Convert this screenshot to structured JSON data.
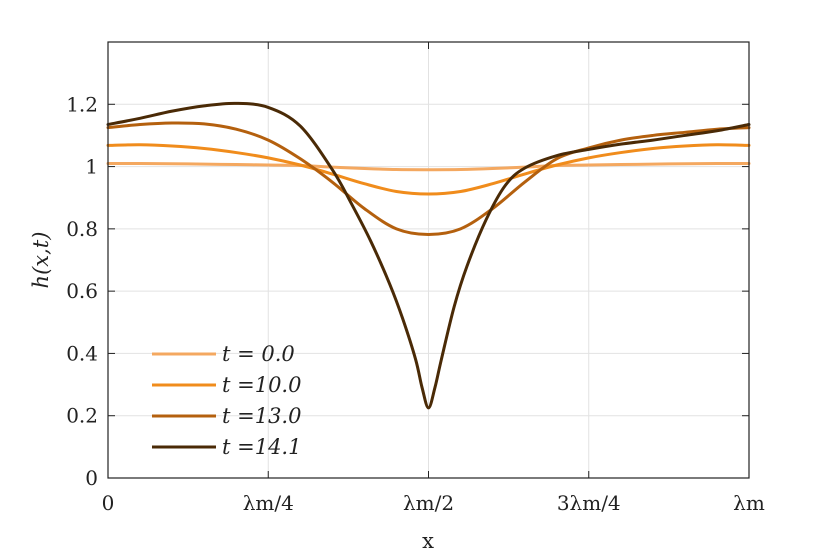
{
  "chart_data": {
    "type": "line",
    "title": "",
    "xlabel": "x",
    "ylabel": "h(x,t)",
    "xlim": [
      0,
      1
    ],
    "ylim": [
      0,
      1.4
    ],
    "grid": true,
    "legend_position": "bottom-left",
    "x_ticks": [
      {
        "value": 0,
        "label": "0"
      },
      {
        "value": 0.25,
        "label": "λm/4"
      },
      {
        "value": 0.5,
        "label": "λm/2"
      },
      {
        "value": 0.75,
        "label": "3λm/4"
      },
      {
        "value": 1,
        "label": "λm"
      }
    ],
    "y_ticks": [
      {
        "value": 0,
        "label": "0"
      },
      {
        "value": 0.2,
        "label": "0.2"
      },
      {
        "value": 0.4,
        "label": "0.4"
      },
      {
        "value": 0.6,
        "label": "0.6"
      },
      {
        "value": 0.8,
        "label": "0.8"
      },
      {
        "value": 1.0,
        "label": "1"
      },
      {
        "value": 1.2,
        "label": "1.2"
      }
    ],
    "series": [
      {
        "name": "t = 0.0",
        "color": "#f4a860",
        "x": [
          0,
          0.05,
          0.1,
          0.15,
          0.2,
          0.25,
          0.3,
          0.35,
          0.4,
          0.45,
          0.5,
          0.55,
          0.6,
          0.65,
          0.7,
          0.75,
          0.8,
          0.85,
          0.9,
          0.95,
          1.0
        ],
        "y": [
          1.01,
          1.0098,
          1.009,
          1.0079,
          1.0065,
          1.005,
          1.0033,
          0.9983,
          0.9936,
          0.9905,
          0.99,
          0.9905,
          0.9936,
          0.9983,
          1.0033,
          1.005,
          1.0065,
          1.0079,
          1.009,
          1.0098,
          1.01
        ]
      },
      {
        "name": "t =10.0",
        "color": "#f08c1c",
        "x": [
          0,
          0.05,
          0.1,
          0.15,
          0.2,
          0.25,
          0.3,
          0.35,
          0.4,
          0.45,
          0.5,
          0.55,
          0.6,
          0.65,
          0.7,
          0.75,
          0.8,
          0.85,
          0.9,
          0.95,
          1.0
        ],
        "y": [
          1.068,
          1.07,
          1.066,
          1.058,
          1.045,
          1.028,
          1.005,
          0.976,
          0.945,
          0.92,
          0.912,
          0.92,
          0.945,
          0.976,
          1.005,
          1.028,
          1.045,
          1.058,
          1.066,
          1.07,
          1.068
        ]
      },
      {
        "name": "t =13.0",
        "color": "#b4600e",
        "x": [
          0,
          0.05,
          0.1,
          0.15,
          0.2,
          0.25,
          0.3,
          0.35,
          0.4,
          0.45,
          0.5,
          0.55,
          0.6,
          0.65,
          0.7,
          0.75,
          0.8,
          0.85,
          0.9,
          0.95,
          1.0
        ],
        "y": [
          1.125,
          1.135,
          1.14,
          1.137,
          1.12,
          1.085,
          1.025,
          0.95,
          0.865,
          0.8,
          0.782,
          0.8,
          0.865,
          0.95,
          1.025,
          1.06,
          1.085,
          1.1,
          1.11,
          1.12,
          1.125
        ]
      },
      {
        "name": "t =14.1",
        "color": "#4a2a06",
        "x": [
          0,
          0.05,
          0.1,
          0.15,
          0.2,
          0.25,
          0.3,
          0.35,
          0.38,
          0.41,
          0.44,
          0.46,
          0.48,
          0.49,
          0.5,
          0.51,
          0.52,
          0.54,
          0.56,
          0.59,
          0.62,
          0.65,
          0.7,
          0.75,
          0.8,
          0.85,
          0.9,
          0.95,
          1.0
        ],
        "y": [
          1.135,
          1.155,
          1.178,
          1.195,
          1.203,
          1.19,
          1.13,
          0.99,
          0.88,
          0.76,
          0.62,
          0.51,
          0.38,
          0.29,
          0.225,
          0.29,
          0.38,
          0.55,
          0.68,
          0.83,
          0.94,
          0.995,
          1.035,
          1.055,
          1.072,
          1.085,
          1.1,
          1.115,
          1.135
        ]
      }
    ]
  }
}
